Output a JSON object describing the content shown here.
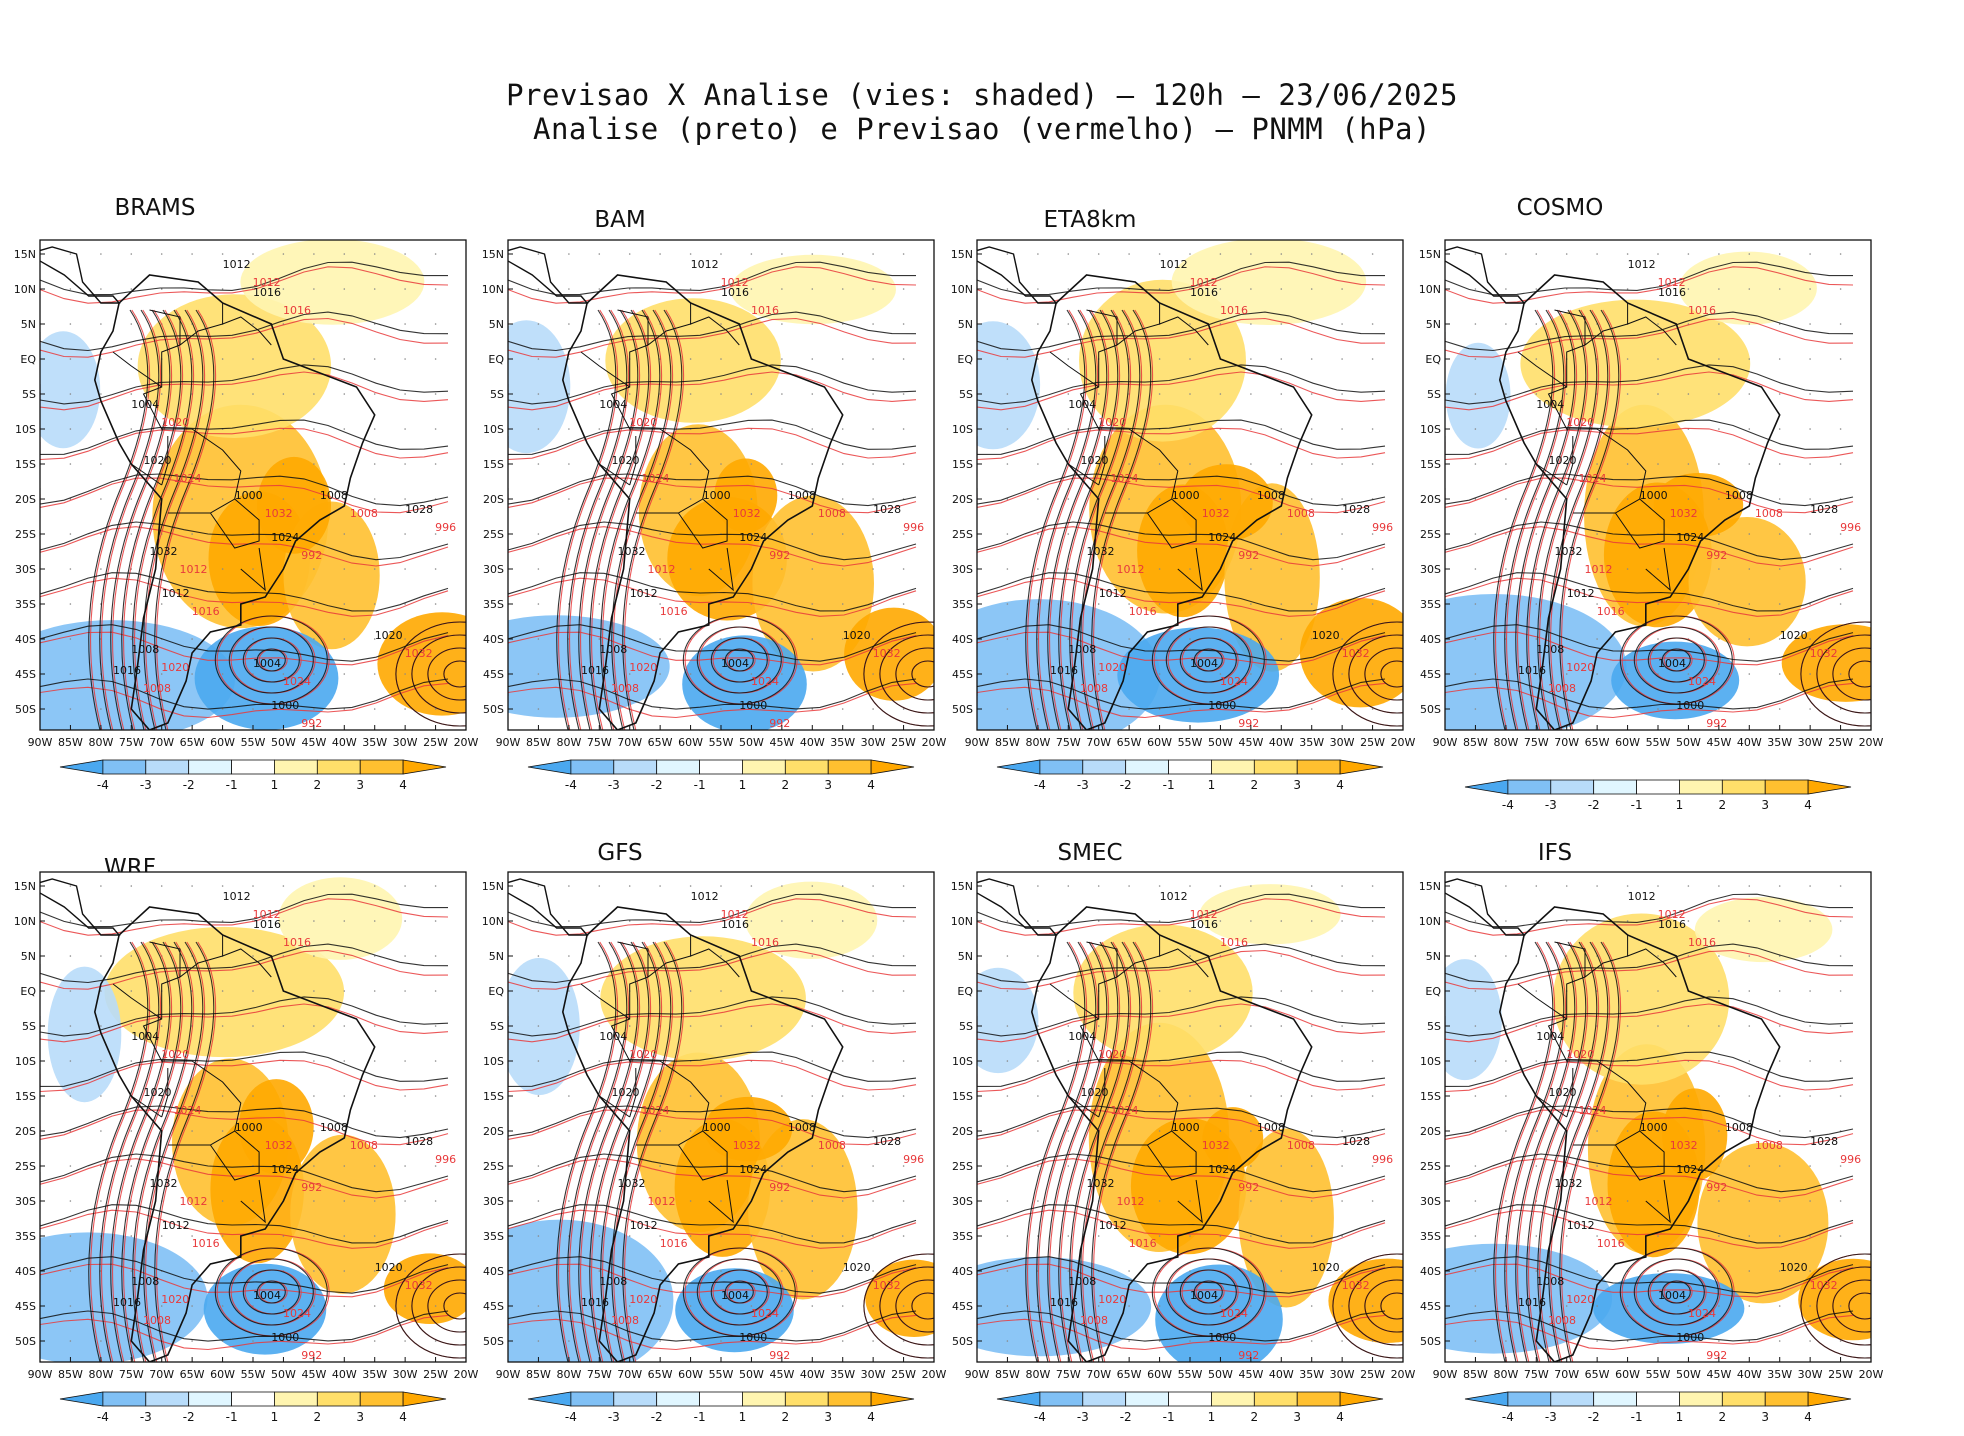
{
  "figure": {
    "title_line1": "Previsao X Analise (vies: shaded) – 120h – 23/06/2025",
    "title_line2": "Analise (preto) e Previsao (vermelho) – PNMM (hPa)"
  },
  "panels": [
    {
      "name": "BRAMS"
    },
    {
      "name": "BAM"
    },
    {
      "name": "ETA8km"
    },
    {
      "name": "COSMO"
    },
    {
      "name": "WRF"
    },
    {
      "name": "GFS"
    },
    {
      "name": "SMEC"
    },
    {
      "name": "IFS"
    }
  ],
  "axes": {
    "lat_labels": [
      "15N",
      "10N",
      "5N",
      "EQ",
      "5S",
      "10S",
      "15S",
      "20S",
      "25S",
      "30S",
      "35S",
      "40S",
      "45S",
      "50S"
    ],
    "lon_labels": [
      "90W",
      "85W",
      "80W",
      "75W",
      "70W",
      "65W",
      "60W",
      "55W",
      "50W",
      "45W",
      "40W",
      "35W",
      "30W",
      "25W",
      "20W"
    ]
  },
  "colorbar": {
    "labels": [
      "-4",
      "-3",
      "-2",
      "-1",
      "1",
      "2",
      "3",
      "4"
    ],
    "colors": [
      "#4aa8f0",
      "#80c0f5",
      "#b8dcfa",
      "#e0f6ff",
      "#ffffff",
      "#fff5b0",
      "#ffdf6a",
      "#ffc030",
      "#ffa800"
    ]
  },
  "contour_labels": {
    "analysis": [
      "1012",
      "1016",
      "1008",
      "1004",
      "1020",
      "1000",
      "1024",
      "1028",
      "1032"
    ],
    "forecast": [
      "1012",
      "1016",
      "1008",
      "1020",
      "1024",
      "1032",
      "992",
      "996"
    ]
  },
  "colors": {
    "analysis": "#111111",
    "forecast": "#e8393b",
    "positive_bias": "#ffb21a",
    "negative_bias": "#5ab0f2"
  }
}
